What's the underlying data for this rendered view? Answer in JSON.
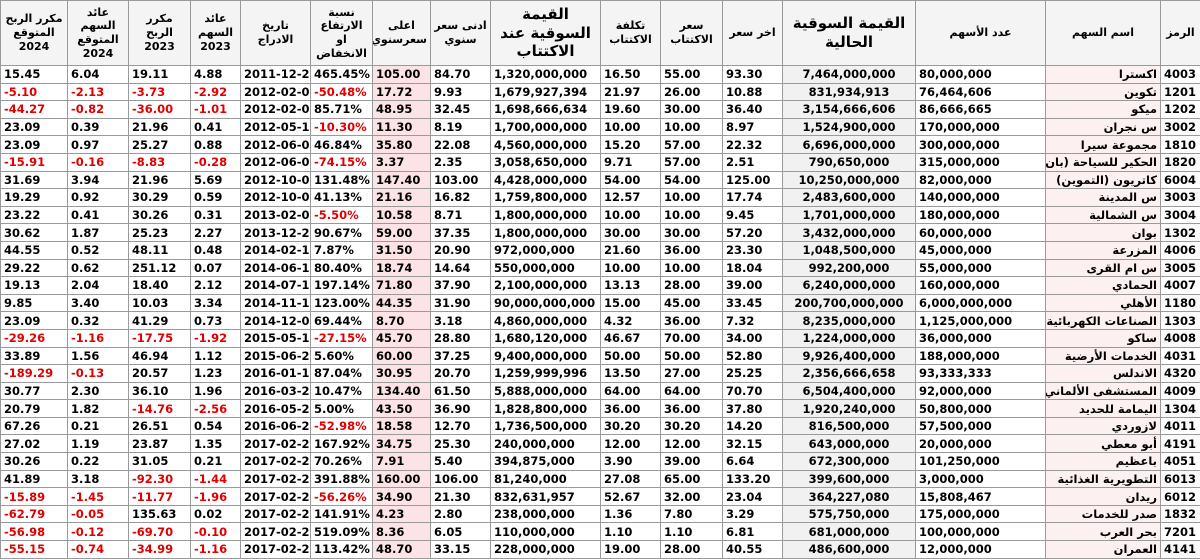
{
  "table": {
    "header": [
      "الرمز",
      "اسم السهم",
      "عدد الأسهم",
      "القيمة السوقية الحالية",
      "اخر سعر",
      "سعر الاكتتاب",
      "تكلفة الاكتتاب",
      "القيمة السوقية عند الاكتتاب",
      "ادنى سعر سنوي",
      "اعلى سعرسنوي",
      "نسبة الارتفاع او الانخفاض",
      "تاريخ الادراج",
      "عائد السهم 2023",
      "مكرر الربح 2023",
      "عائد السهم المتوقع 2024",
      "مكرر الربح المتوقع 2024"
    ],
    "rows": [
      [
        "4003",
        "اكسترا",
        "80,000,000",
        "7,464,000,000",
        "93.30",
        "55.00",
        "16.50",
        "1,320,000,000",
        "84.70",
        "105.00",
        "465.45%",
        "2011-12-24",
        "4.88",
        "19.11",
        "6.04",
        "15.45"
      ],
      [
        "1201",
        "تكوين",
        "76,464,606",
        "831,934,913",
        "10.88",
        "26.00",
        "21.97",
        "1,679,927,394",
        "9.93",
        "17.72",
        "-50.48%",
        "2012-02-07",
        "-2.92",
        "-3.73",
        "-2.13",
        "-5.10"
      ],
      [
        "1202",
        "ميكو",
        "86,666,665",
        "3,154,666,606",
        "36.40",
        "30.00",
        "19.60",
        "1,698,666,634",
        "32.45",
        "48.95",
        "85.71%",
        "2012-02-07",
        "-1.01",
        "-36.00",
        "-0.82",
        "-44.27"
      ],
      [
        "3002",
        "س نجران",
        "170,000,000",
        "1,524,900,000",
        "8.97",
        "10.00",
        "10.00",
        "1,700,000,000",
        "8.19",
        "11.30",
        "-10.30%",
        "2012-05-12",
        "0.41",
        "21.96",
        "0.39",
        "23.09"
      ],
      [
        "1810",
        "مجموعة سيرا",
        "300,000,000",
        "6,696,000,000",
        "22.32",
        "57.00",
        "15.20",
        "4,560,000,000",
        "22.08",
        "35.80",
        "46.84%",
        "2012-06-04",
        "0.88",
        "25.27",
        "0.97",
        "23.09"
      ],
      [
        "1820",
        "الحكير للسياحة (بان القابضة)",
        "315,000,000",
        "790,650,000",
        "2.51",
        "57.00",
        "9.71",
        "3,058,650,000",
        "2.35",
        "3.37",
        "-74.15%",
        "2012-06-04",
        "-0.28",
        "-8.83",
        "-0.16",
        "-15.91"
      ],
      [
        "6004",
        "كاتريون (التموين)",
        "82,000,000",
        "10,250,000,000",
        "125.00",
        "54.00",
        "54.00",
        "4,428,000,000",
        "103.00",
        "147.40",
        "131.48%",
        "2012-10-03",
        "5.69",
        "21.96",
        "3.94",
        "31.69"
      ],
      [
        "3003",
        "س المدينة",
        "140,000,000",
        "2,483,600,000",
        "17.74",
        "10.00",
        "12.57",
        "1,759,800,000",
        "16.82",
        "21.16",
        "41.13%",
        "2012-10-03",
        "0.59",
        "30.29",
        "0.92",
        "19.29"
      ],
      [
        "3004",
        "س الشمالية",
        "180,000,000",
        "1,701,000,000",
        "9.45",
        "10.00",
        "10.00",
        "1,800,000,000",
        "8.71",
        "10.58",
        "-5.50%",
        "2013-02-05",
        "0.31",
        "30.26",
        "0.41",
        "23.22"
      ],
      [
        "1302",
        "بوان",
        "60,000,000",
        "3,432,000,000",
        "57.20",
        "30.00",
        "30.00",
        "1,800,000,000",
        "37.35",
        "59.00",
        "90.67%",
        "2013-12-24",
        "2.27",
        "25.23",
        "1.87",
        "30.62"
      ],
      [
        "4006",
        "المزرعة",
        "45,000,000",
        "1,048,500,000",
        "23.30",
        "36.00",
        "21.60",
        "972,000,000",
        "20.90",
        "31.50",
        "7.87%",
        "2014-02-16",
        "0.48",
        "48.11",
        "0.52",
        "44.55"
      ],
      [
        "3005",
        "س ام القرى",
        "55,000,000",
        "992,200,000",
        "18.04",
        "10.00",
        "10.00",
        "550,000,000",
        "14.64",
        "18.74",
        "80.40%",
        "2014-06-12",
        "0.07",
        "251.12",
        "0.62",
        "29.22"
      ],
      [
        "4007",
        "الحمادي",
        "160,000,000",
        "6,240,000,000",
        "39.00",
        "28.00",
        "13.13",
        "2,100,000,000",
        "37.90",
        "71.80",
        "197.14%",
        "2014-07-15",
        "2.12",
        "18.40",
        "2.04",
        "19.13"
      ],
      [
        "1180",
        "الأهلي",
        "6,000,000,000",
        "200,700,000,000",
        "33.45",
        "45.00",
        "15.00",
        "90,000,000,000",
        "31.90",
        "44.35",
        "123.00%",
        "2014-11-12",
        "3.34",
        "10.03",
        "3.40",
        "9.85"
      ],
      [
        "1303",
        "الصناعات الكهربائية",
        "1,125,000,000",
        "8,235,000,000",
        "7.32",
        "36.00",
        "4.32",
        "4,860,000,000",
        "3.18",
        "8.70",
        "69.44%",
        "2014-12-07",
        "0.73",
        "41.29",
        "0.32",
        "23.09"
      ],
      [
        "4008",
        "ساكو",
        "36,000,000",
        "1,224,000,000",
        "34.00",
        "70.00",
        "46.67",
        "1,680,120,000",
        "28.80",
        "45.70",
        "-27.15%",
        "2015-05-12",
        "-1.92",
        "-17.75",
        "-1.16",
        "-29.26"
      ],
      [
        "4031",
        "الخدمات الأرضية",
        "188,000,000",
        "9,926,400,000",
        "52.80",
        "50.00",
        "50.00",
        "9,400,000,000",
        "37.25",
        "60.00",
        "5.60%",
        "2015-06-25",
        "1.12",
        "46.94",
        "1.56",
        "33.89"
      ],
      [
        "4320",
        "الاندلس",
        "93,333,333",
        "2,356,666,658",
        "25.25",
        "27.00",
        "13.50",
        "1,259,999,996",
        "20.70",
        "30.95",
        "87.04%",
        "2016-01-12",
        "1.23",
        "20.57",
        "-0.13",
        "-189.29"
      ],
      [
        "4009",
        "المستشفى الألماني",
        "92,000,000",
        "6,504,400,000",
        "70.70",
        "64.00",
        "64.00",
        "5,888,000,000",
        "61.50",
        "134.40",
        "10.47%",
        "2016-03-29",
        "1.96",
        "36.10",
        "2.30",
        "30.77"
      ],
      [
        "1304",
        "اليمامة للحديد",
        "50,800,000",
        "1,920,240,000",
        "37.80",
        "36.00",
        "36.00",
        "1,828,800,000",
        "36.90",
        "43.50",
        "5.00%",
        "2016-05-22",
        "-2.56",
        "-14.76",
        "1.82",
        "20.79"
      ],
      [
        "4011",
        "لازوردي",
        "57,500,000",
        "816,500,000",
        "14.20",
        "30.20",
        "30.20",
        "1,736,500,000",
        "12.70",
        "18.58",
        "-52.98%",
        "2016-06-29",
        "0.54",
        "26.51",
        "0.21",
        "67.26"
      ],
      [
        "4191",
        "أبو معطي",
        "20,000,000",
        "643,000,000",
        "32.15",
        "12.00",
        "12.00",
        "240,000,000",
        "25.30",
        "34.75",
        "167.92%",
        "2017-02-26",
        "1.35",
        "23.87",
        "1.19",
        "27.02"
      ],
      [
        "4051",
        "باعظيم",
        "101,250,000",
        "672,300,000",
        "6.64",
        "39.00",
        "3.90",
        "394,875,000",
        "5.40",
        "7.91",
        "70.26%",
        "2017-02-26",
        "0.21",
        "31.05",
        "0.22",
        "30.26"
      ],
      [
        "6013",
        "التطويرية الغذائية",
        "3,000,000",
        "399,600,000",
        "133.20",
        "65.00",
        "27.08",
        "81,240,000",
        "106.00",
        "160.00",
        "391.88%",
        "2017-02-26",
        "-1.44",
        "-92.30",
        "3.18",
        "41.89"
      ],
      [
        "6012",
        "ريدان",
        "15,808,467",
        "364,227,080",
        "23.04",
        "32.00",
        "52.67",
        "832,631,957",
        "21.30",
        "34.90",
        "-56.26%",
        "2017-02-26",
        "-1.96",
        "-11.77",
        "-1.45",
        "-15.89"
      ],
      [
        "1832",
        "صدر للخدمات",
        "175,000,000",
        "575,750,000",
        "3.29",
        "7.80",
        "1.36",
        "238,000,000",
        "2.80",
        "4.23",
        "141.91%",
        "2017-02-26",
        "0.02",
        "135.63",
        "-0.05",
        "-62.79"
      ],
      [
        "7201",
        "بحر العرب",
        "100,000,000",
        "681,000,000",
        "6.81",
        "1.10",
        "1.10",
        "110,000,000",
        "6.05",
        "8.36",
        "519.09%",
        "2017-02-26",
        "-0.10",
        "-69.70",
        "-0.12",
        "-56.98"
      ],
      [
        "4141",
        "العمران",
        "12,000,000",
        "486,600,000",
        "40.55",
        "28.00",
        "19.00",
        "228,000,000",
        "33.15",
        "48.70",
        "113.42%",
        "2017-02-26",
        "-1.16",
        "-34.99",
        "-0.74",
        "-55.15"
      ]
    ]
  }
}
